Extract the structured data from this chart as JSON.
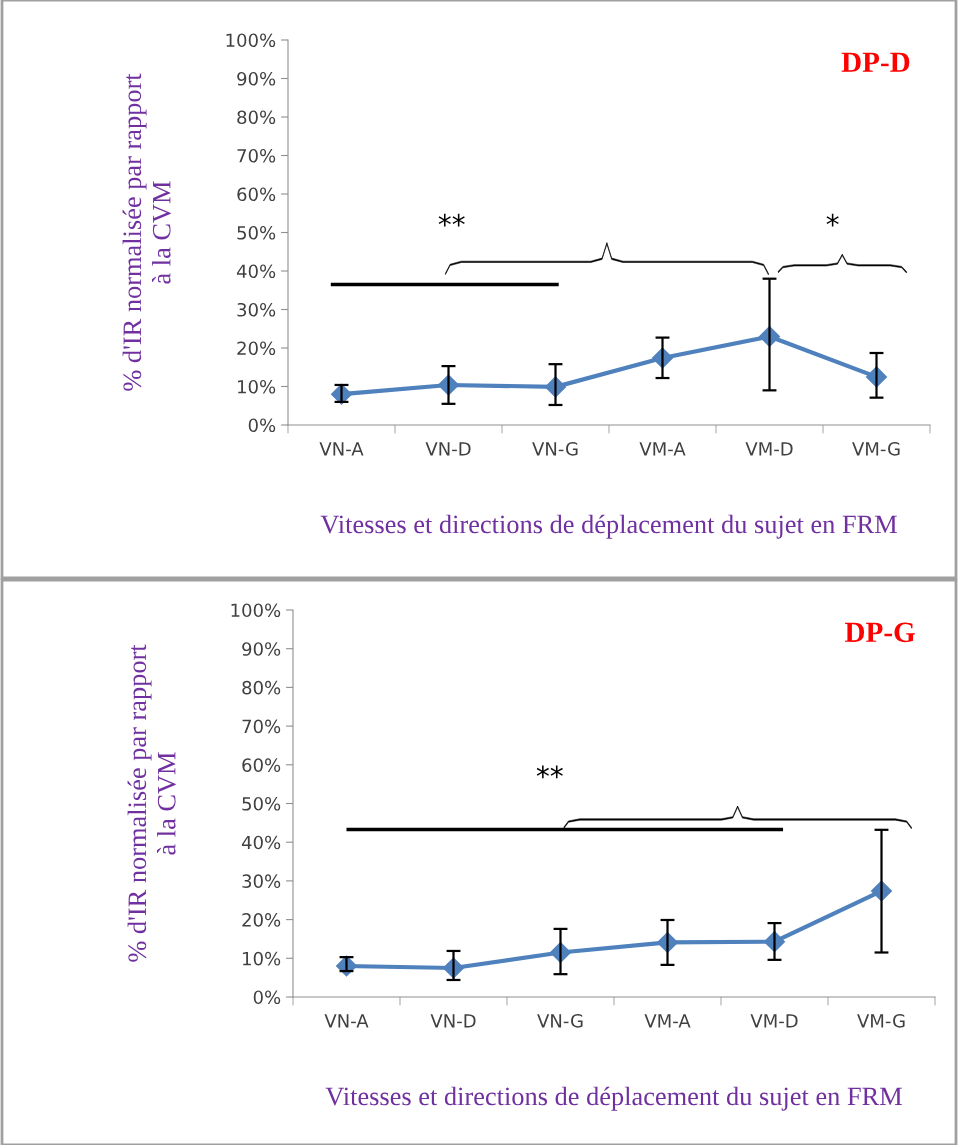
{
  "chart_data": [
    {
      "type": "line",
      "title": "DP-D",
      "xlabel": "Vitesses et directions de déplacement du sujet en FRM",
      "ylabel": "% d'IR normalisée par rapport\nà la CVM",
      "categories": [
        "VN-A",
        "VN-D",
        "VN-G",
        "VM-A",
        "VM-D",
        "VM-G"
      ],
      "series": [
        {
          "color": "#4f81bd",
          "values": [
            8,
            10.4,
            9.9,
            17.4,
            23,
            12.5
          ],
          "errors": [
            [
              6,
              10.4
            ],
            [
              5.5,
              15.3
            ],
            [
              5.2,
              15.8
            ],
            [
              12.2,
              22.7
            ],
            [
              9,
              38
            ],
            [
              7.1,
              18.7
            ]
          ]
        }
      ],
      "ylim": [
        0,
        100
      ],
      "yticks": [
        {
          "value": 0,
          "label": "0%"
        },
        {
          "value": 10,
          "label": "10%"
        },
        {
          "value": 20,
          "label": "20%"
        },
        {
          "value": 30,
          "label": "30%"
        },
        {
          "value": 40,
          "label": "40%"
        },
        {
          "value": 50,
          "label": "50%"
        },
        {
          "value": 60,
          "label": "60%"
        },
        {
          "value": 70,
          "label": "70%"
        },
        {
          "value": 80,
          "label": "80%"
        },
        {
          "value": 90,
          "label": "90%"
        },
        {
          "value": 100,
          "label": "100%"
        }
      ],
      "marker": "diamond",
      "line_style": "solid",
      "grid": false,
      "annotations": [
        "**",
        "*"
      ]
    },
    {
      "type": "line",
      "title": "DP-G",
      "xlabel": "Vitesses et directions de déplacement du sujet en FRM",
      "ylabel": "% d'IR normalisée par rapport\nà la CVM",
      "categories": [
        "VN-A",
        "VN-D",
        "VN-G",
        "VM-A",
        "VM-D",
        "VM-G"
      ],
      "series": [
        {
          "color": "#4f81bd",
          "values": [
            8,
            7.5,
            11.5,
            14.1,
            14.3,
            27.4
          ],
          "errors": [
            [
              6.7,
              10.3
            ],
            [
              4.4,
              11.9
            ],
            [
              5.9,
              17.6
            ],
            [
              8.3,
              19.9
            ],
            [
              9.6,
              19.1
            ],
            [
              11.5,
              43.2
            ]
          ]
        }
      ],
      "ylim": [
        0,
        100
      ],
      "yticks": [
        {
          "value": 0,
          "label": "0%"
        },
        {
          "value": 10,
          "label": "10%"
        },
        {
          "value": 20,
          "label": "20%"
        },
        {
          "value": 30,
          "label": "30%"
        },
        {
          "value": 40,
          "label": "40%"
        },
        {
          "value": 50,
          "label": "50%"
        },
        {
          "value": 60,
          "label": "60%"
        },
        {
          "value": 70,
          "label": "70%"
        },
        {
          "value": 80,
          "label": "80%"
        },
        {
          "value": 90,
          "label": "90%"
        },
        {
          "value": 100,
          "label": "100%"
        }
      ],
      "marker": "diamond",
      "line_style": "solid",
      "grid": false,
      "annotations": [
        "**"
      ]
    }
  ]
}
